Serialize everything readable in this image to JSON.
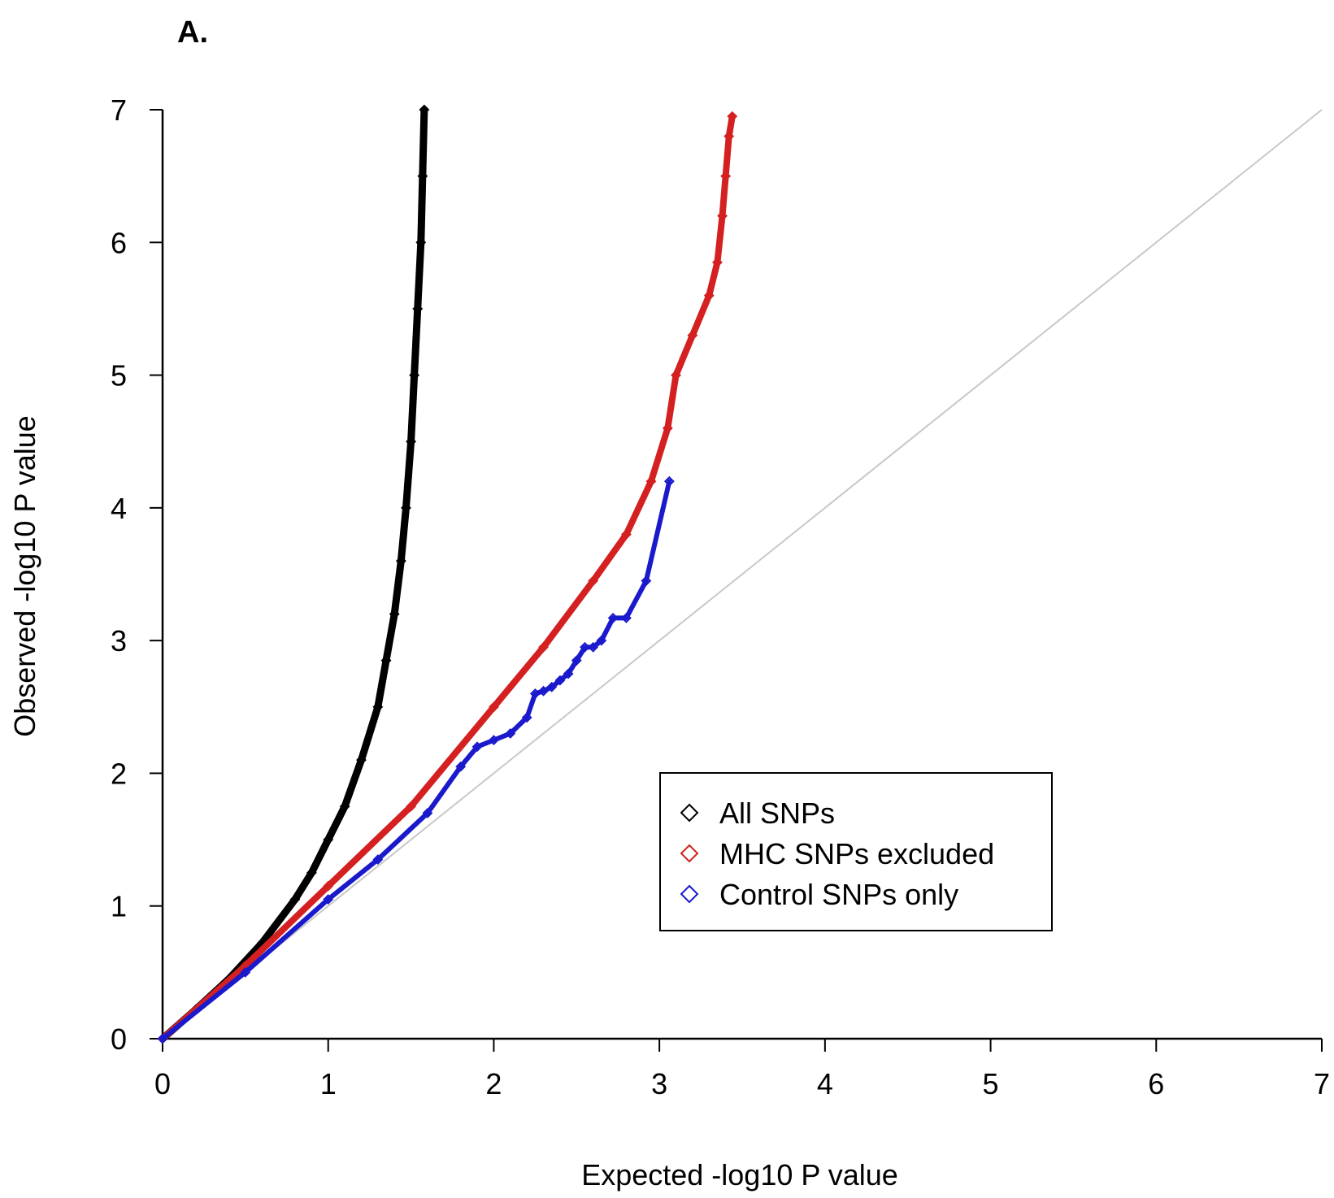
{
  "panel_label": "A.",
  "chart_data": {
    "type": "scatter",
    "title": "",
    "xlabel": "Expected -log10 P value",
    "ylabel": "Observed -log10 P value",
    "xlim": [
      0,
      7
    ],
    "ylim": [
      0,
      7
    ],
    "xticks": [
      "0",
      "1",
      "2",
      "3",
      "4",
      "5",
      "6",
      "7"
    ],
    "yticks": [
      "0",
      "1",
      "2",
      "3",
      "4",
      "5",
      "6",
      "7"
    ],
    "grid": false,
    "legend_placement": "center-right",
    "reference_line": {
      "from": [
        0,
        0
      ],
      "to": [
        7,
        7
      ],
      "color": "#c8c8c8"
    },
    "series": [
      {
        "name": "All SNPs",
        "color": "#000000",
        "marker": "diamond",
        "dense": true,
        "points": [
          [
            0,
            0
          ],
          [
            0.2,
            0.22
          ],
          [
            0.4,
            0.45
          ],
          [
            0.6,
            0.72
          ],
          [
            0.8,
            1.05
          ],
          [
            0.9,
            1.25
          ],
          [
            1.0,
            1.5
          ],
          [
            1.1,
            1.75
          ],
          [
            1.2,
            2.1
          ],
          [
            1.3,
            2.5
          ],
          [
            1.35,
            2.85
          ],
          [
            1.4,
            3.2
          ],
          [
            1.44,
            3.6
          ],
          [
            1.47,
            4.0
          ],
          [
            1.5,
            4.5
          ],
          [
            1.52,
            5.0
          ],
          [
            1.54,
            5.5
          ],
          [
            1.56,
            6.0
          ],
          [
            1.57,
            6.5
          ],
          [
            1.58,
            7.0
          ]
        ]
      },
      {
        "name": "MHC SNPs excluded",
        "color": "#d42020",
        "marker": "diamond",
        "dense": true,
        "points": [
          [
            0,
            0
          ],
          [
            0.5,
            0.55
          ],
          [
            1.0,
            1.15
          ],
          [
            1.5,
            1.75
          ],
          [
            2.0,
            2.5
          ],
          [
            2.3,
            2.95
          ],
          [
            2.6,
            3.45
          ],
          [
            2.8,
            3.8
          ],
          [
            2.95,
            4.2
          ],
          [
            3.05,
            4.6
          ],
          [
            3.1,
            5.0
          ],
          [
            3.2,
            5.3
          ],
          [
            3.3,
            5.6
          ],
          [
            3.35,
            5.85
          ],
          [
            3.38,
            6.2
          ],
          [
            3.4,
            6.5
          ],
          [
            3.42,
            6.8
          ],
          [
            3.44,
            6.95
          ]
        ]
      },
      {
        "name": "Control SNPs only",
        "color": "#1a1acc",
        "marker": "diamond",
        "dense": true,
        "points": [
          [
            0,
            0
          ],
          [
            0.5,
            0.5
          ],
          [
            1.0,
            1.05
          ],
          [
            1.3,
            1.35
          ],
          [
            1.6,
            1.7
          ],
          [
            1.8,
            2.05
          ],
          [
            1.9,
            2.2
          ],
          [
            2.0,
            2.25
          ],
          [
            2.1,
            2.3
          ],
          [
            2.2,
            2.42
          ],
          [
            2.25,
            2.6
          ],
          [
            2.3,
            2.62
          ],
          [
            2.35,
            2.65
          ],
          [
            2.4,
            2.7
          ],
          [
            2.45,
            2.75
          ],
          [
            2.5,
            2.85
          ],
          [
            2.55,
            2.95
          ],
          [
            2.6,
            2.95
          ],
          [
            2.65,
            3.0
          ],
          [
            2.72,
            3.17
          ],
          [
            2.8,
            3.17
          ],
          [
            2.92,
            3.45
          ],
          [
            3.06,
            4.2
          ]
        ]
      }
    ]
  }
}
